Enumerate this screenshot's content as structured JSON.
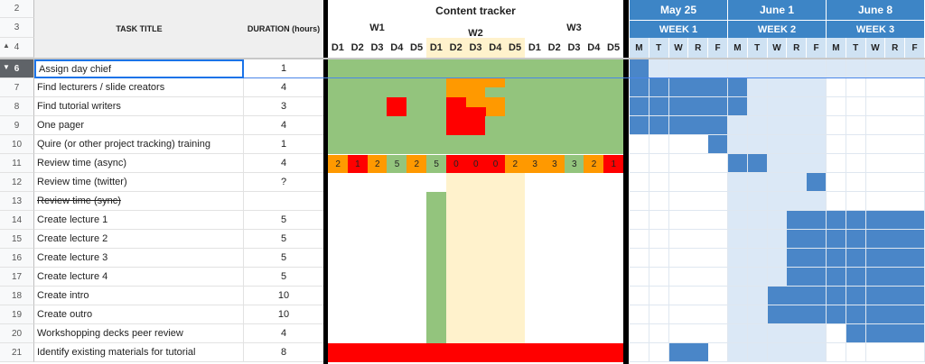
{
  "header": {
    "rows": [
      "2",
      "3",
      "4"
    ],
    "task_title": "TASK TITLE",
    "duration": "DURATION (hours)"
  },
  "tasks": [
    {
      "row": "6",
      "title": "Assign day chief",
      "duration": "1"
    },
    {
      "row": "7",
      "title": "Find lecturers / slide creators",
      "duration": "4"
    },
    {
      "row": "8",
      "title": "Find tutorial writers",
      "duration": "3"
    },
    {
      "row": "9",
      "title": "One pager",
      "duration": "4"
    },
    {
      "row": "10",
      "title": "Quire (or other project tracking) training",
      "duration": "1"
    },
    {
      "row": "11",
      "title": "Review time (async)",
      "duration": "4"
    },
    {
      "row": "12",
      "title": "Review time (twitter)",
      "duration": "?"
    },
    {
      "row": "13",
      "title": "Review time (sync)",
      "duration": ""
    },
    {
      "row": "14",
      "title": "Create lecture 1",
      "duration": "5"
    },
    {
      "row": "15",
      "title": "Create lecture 2",
      "duration": "5"
    },
    {
      "row": "16",
      "title": "Create lecture 3",
      "duration": "5"
    },
    {
      "row": "17",
      "title": "Create lecture 4",
      "duration": "5"
    },
    {
      "row": "18",
      "title": "Create intro",
      "duration": "10"
    },
    {
      "row": "19",
      "title": "Create outro",
      "duration": "10"
    },
    {
      "row": "20",
      "title": "Workshopping decks peer review",
      "duration": "4"
    },
    {
      "row": "21",
      "title": "Identify existing materials for tutorial",
      "duration": "8"
    }
  ],
  "content_tracker": {
    "title": "Content tracker",
    "weeks": [
      "W1",
      "W2",
      "W3"
    ],
    "days": [
      "D1",
      "D2",
      "D3",
      "D4",
      "D5",
      "D1",
      "D2",
      "D3",
      "D4",
      "D5",
      "D1",
      "D2",
      "D3",
      "D4",
      "D5"
    ],
    "review_async_values": [
      "2",
      "1",
      "2",
      "5",
      "2",
      "5",
      "0",
      "0",
      "0",
      "2",
      "3",
      "3",
      "3",
      "2",
      "1"
    ]
  },
  "gantt": {
    "months": [
      "May 25",
      "June 1",
      "June 8"
    ],
    "weeks": [
      "WEEK 1",
      "WEEK 2",
      "WEEK 3"
    ],
    "days": [
      "M",
      "T",
      "W",
      "R",
      "F",
      "M",
      "T",
      "W",
      "R",
      "F",
      "M",
      "T",
      "W",
      "R",
      "F"
    ]
  },
  "colors": {
    "green": "#93c47d",
    "red": "#ff0000",
    "orange": "#ff9900",
    "light_yellow": "#fff2cc",
    "gantt_header": "#3d85c6",
    "gantt_fill": "#4a86c8",
    "gantt_light": "#dbe8f6",
    "divider": "#000000"
  }
}
